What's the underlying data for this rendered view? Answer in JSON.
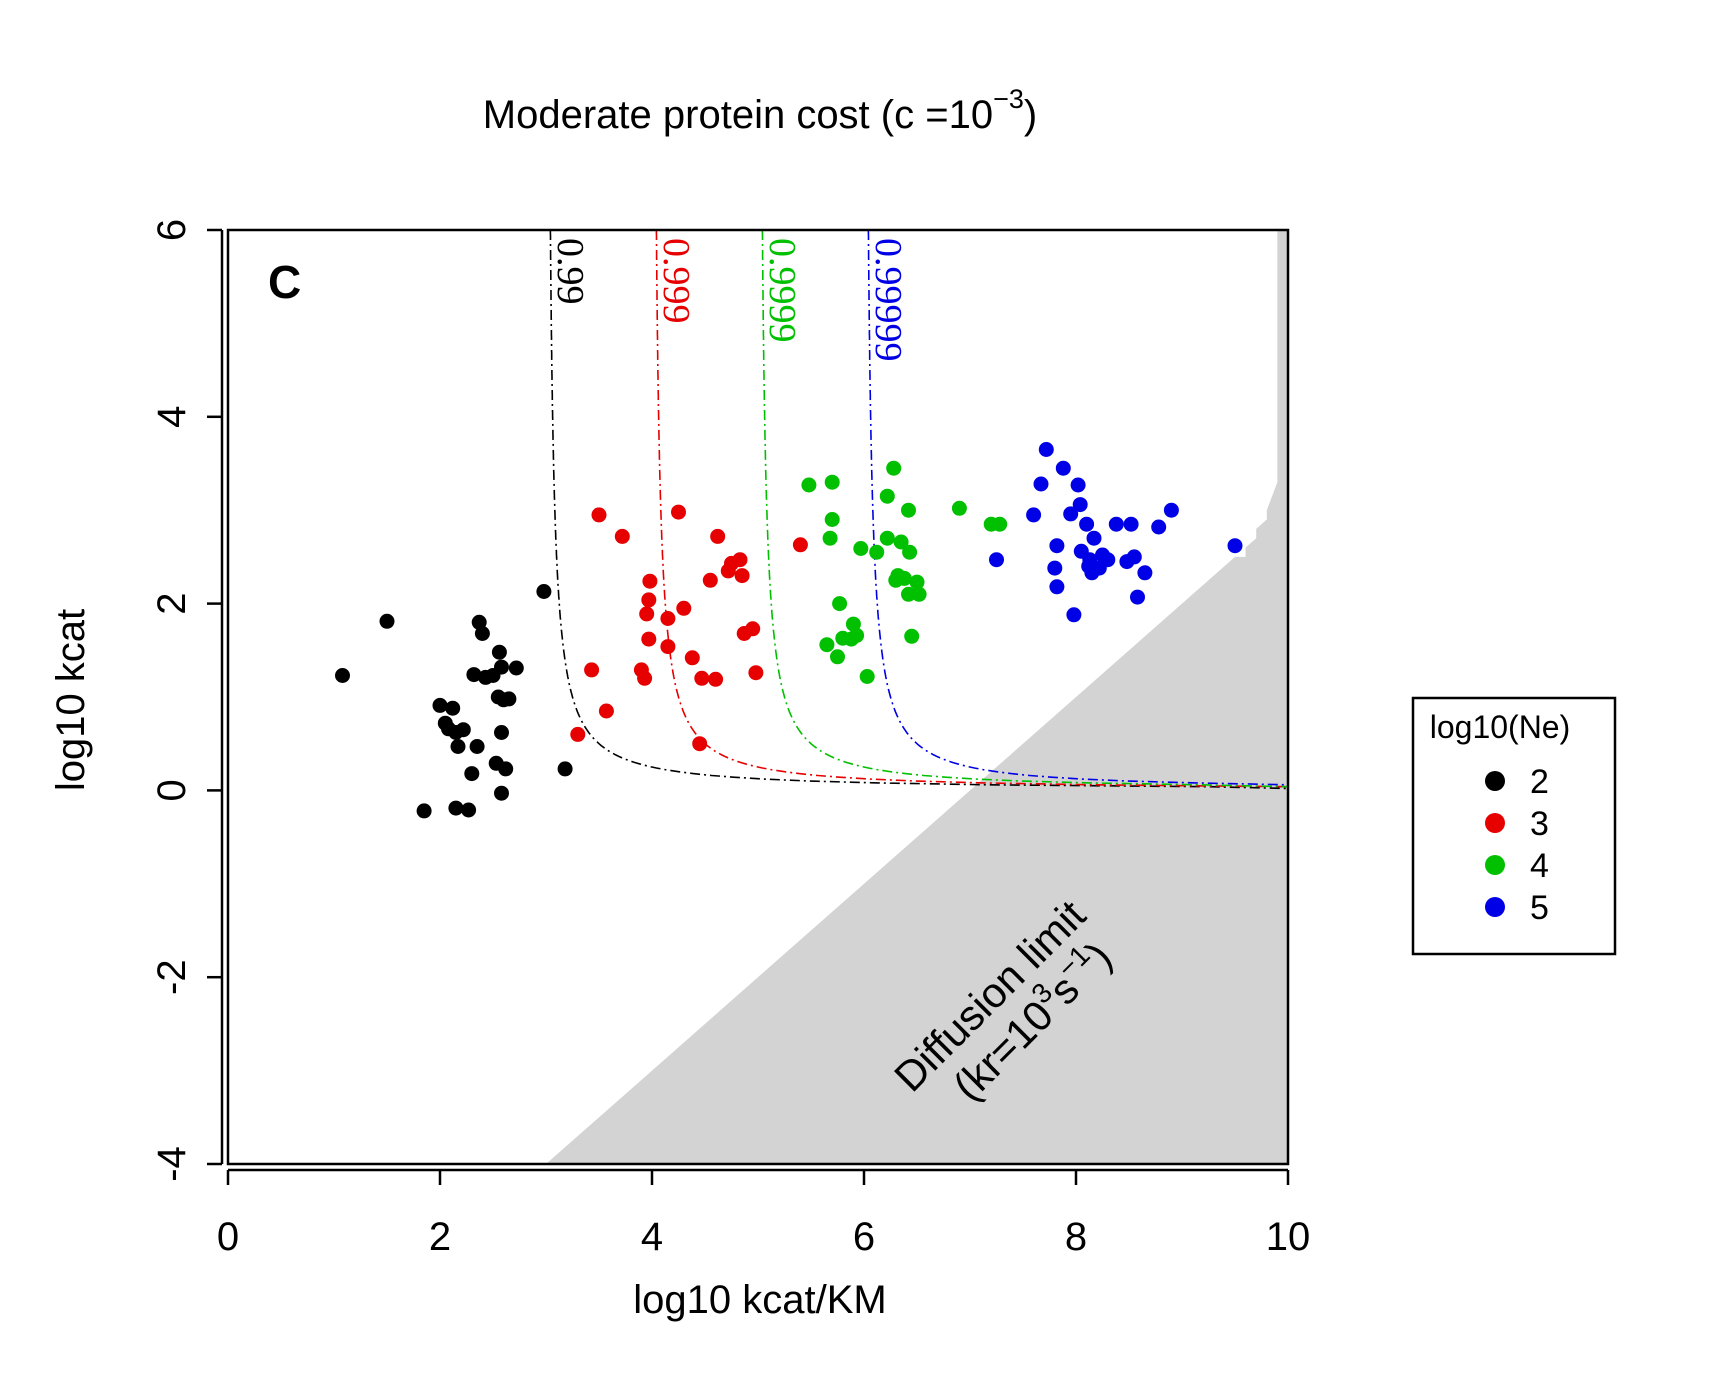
{
  "chart_data": {
    "type": "scatter",
    "title": "Moderate protein cost (c =10",
    "title_exponent": "−3",
    "title_close": ")",
    "panel_label": "C",
    "xlabel": "log10 kcat/KM",
    "ylabel": "log10 kcat",
    "xlim": [
      0,
      10
    ],
    "ylim": [
      -4,
      6
    ],
    "x_ticks": [
      0,
      2,
      4,
      6,
      8,
      10
    ],
    "y_ticks": [
      -4,
      -2,
      0,
      2,
      4,
      6
    ],
    "x_tick_labels": [
      "0",
      "2",
      "4",
      "6",
      "8",
      "10"
    ],
    "y_tick_labels": [
      "-4",
      "-2",
      "0",
      "2",
      "4",
      "6"
    ],
    "grid": false,
    "legend": {
      "title": "log10(Ne)",
      "position": "right",
      "entries": [
        "2",
        "3",
        "4",
        "5"
      ]
    },
    "diffusion_label": {
      "line1": "Diffusion limit",
      "line2_pre": "(kr=10",
      "line2_exp1": "3",
      "line2_mid": "s",
      "line2_exp2": "−1",
      "line2_post": ")"
    },
    "contours": [
      {
        "label": "0.99",
        "asymptote_x": 3,
        "color": "#000000"
      },
      {
        "label": "0.999",
        "asymptote_x": 4,
        "color": "#e60000"
      },
      {
        "label": "0.9999",
        "asymptote_x": 5,
        "color": "#00c000"
      },
      {
        "label": "0.99999",
        "asymptote_x": 6,
        "color": "#0000e6"
      }
    ],
    "series": [
      {
        "name": "2",
        "color": "#000000",
        "points": [
          [
            1.08,
            1.23
          ],
          [
            1.5,
            1.81
          ],
          [
            1.85,
            -0.22
          ],
          [
            2.0,
            0.91
          ],
          [
            2.05,
            0.72
          ],
          [
            2.08,
            0.66
          ],
          [
            2.12,
            0.88
          ],
          [
            2.15,
            0.62
          ],
          [
            2.17,
            0.47
          ],
          [
            2.15,
            -0.19
          ],
          [
            2.22,
            0.65
          ],
          [
            2.27,
            -0.21
          ],
          [
            2.3,
            0.18
          ],
          [
            2.32,
            1.24
          ],
          [
            2.35,
            0.47
          ],
          [
            2.37,
            1.8
          ],
          [
            2.4,
            1.68
          ],
          [
            2.43,
            1.21
          ],
          [
            2.5,
            1.23
          ],
          [
            2.53,
            0.29
          ],
          [
            2.55,
            1.0
          ],
          [
            2.56,
            1.48
          ],
          [
            2.58,
            1.32
          ],
          [
            2.6,
            0.97
          ],
          [
            2.62,
            0.23
          ],
          [
            2.58,
            0.62
          ],
          [
            2.58,
            -0.03
          ],
          [
            2.65,
            0.98
          ],
          [
            2.72,
            1.31
          ],
          [
            2.98,
            2.13
          ],
          [
            3.18,
            0.23
          ]
        ]
      },
      {
        "name": "3",
        "color": "#e60000",
        "points": [
          [
            3.3,
            0.6
          ],
          [
            3.43,
            1.29
          ],
          [
            3.5,
            2.95
          ],
          [
            3.57,
            0.85
          ],
          [
            3.72,
            2.72
          ],
          [
            3.9,
            1.29
          ],
          [
            3.93,
            1.2
          ],
          [
            3.95,
            1.89
          ],
          [
            3.97,
            1.62
          ],
          [
            3.97,
            2.04
          ],
          [
            3.98,
            2.24
          ],
          [
            4.15,
            1.84
          ],
          [
            4.15,
            1.54
          ],
          [
            4.25,
            2.98
          ],
          [
            4.3,
            1.95
          ],
          [
            4.38,
            1.42
          ],
          [
            4.45,
            0.5
          ],
          [
            4.47,
            1.2
          ],
          [
            4.55,
            2.25
          ],
          [
            4.6,
            1.19
          ],
          [
            4.62,
            2.72
          ],
          [
            4.72,
            2.35
          ],
          [
            4.75,
            2.43
          ],
          [
            4.83,
            2.47
          ],
          [
            4.85,
            2.3
          ],
          [
            4.87,
            1.68
          ],
          [
            4.95,
            1.73
          ],
          [
            4.98,
            1.26
          ],
          [
            5.4,
            2.63
          ]
        ]
      },
      {
        "name": "4",
        "color": "#00c000",
        "points": [
          [
            5.48,
            3.27
          ],
          [
            5.65,
            1.56
          ],
          [
            5.68,
            2.7
          ],
          [
            5.7,
            2.9
          ],
          [
            5.7,
            3.3
          ],
          [
            5.75,
            1.43
          ],
          [
            5.77,
            2.0
          ],
          [
            5.8,
            1.63
          ],
          [
            5.88,
            1.62
          ],
          [
            5.9,
            1.78
          ],
          [
            5.93,
            1.66
          ],
          [
            5.97,
            2.59
          ],
          [
            6.03,
            1.22
          ],
          [
            6.12,
            2.55
          ],
          [
            6.22,
            2.7
          ],
          [
            6.22,
            3.15
          ],
          [
            6.28,
            3.45
          ],
          [
            6.3,
            2.25
          ],
          [
            6.32,
            2.3
          ],
          [
            6.35,
            2.66
          ],
          [
            6.38,
            2.27
          ],
          [
            6.42,
            2.1
          ],
          [
            6.42,
            3.0
          ],
          [
            6.43,
            2.55
          ],
          [
            6.45,
            1.65
          ],
          [
            6.5,
            2.23
          ],
          [
            6.52,
            2.1
          ],
          [
            6.9,
            3.02
          ],
          [
            7.2,
            2.85
          ],
          [
            7.28,
            2.85
          ]
        ]
      },
      {
        "name": "5",
        "color": "#0000e6",
        "points": [
          [
            7.25,
            2.47
          ],
          [
            7.6,
            2.95
          ],
          [
            7.67,
            3.28
          ],
          [
            7.72,
            3.65
          ],
          [
            7.8,
            2.38
          ],
          [
            7.82,
            2.62
          ],
          [
            7.82,
            2.18
          ],
          [
            7.88,
            3.45
          ],
          [
            7.95,
            2.96
          ],
          [
            7.98,
            1.88
          ],
          [
            8.02,
            3.27
          ],
          [
            8.04,
            3.06
          ],
          [
            8.05,
            2.56
          ],
          [
            8.1,
            2.85
          ],
          [
            8.12,
            2.4
          ],
          [
            8.13,
            2.47
          ],
          [
            8.15,
            2.33
          ],
          [
            8.17,
            2.7
          ],
          [
            8.22,
            2.38
          ],
          [
            8.25,
            2.52
          ],
          [
            8.3,
            2.47
          ],
          [
            8.38,
            2.85
          ],
          [
            8.48,
            2.45
          ],
          [
            8.52,
            2.85
          ],
          [
            8.55,
            2.5
          ],
          [
            8.58,
            2.07
          ],
          [
            8.65,
            2.33
          ],
          [
            8.78,
            2.82
          ],
          [
            8.9,
            3.0
          ],
          [
            9.5,
            2.62
          ]
        ]
      }
    ]
  }
}
